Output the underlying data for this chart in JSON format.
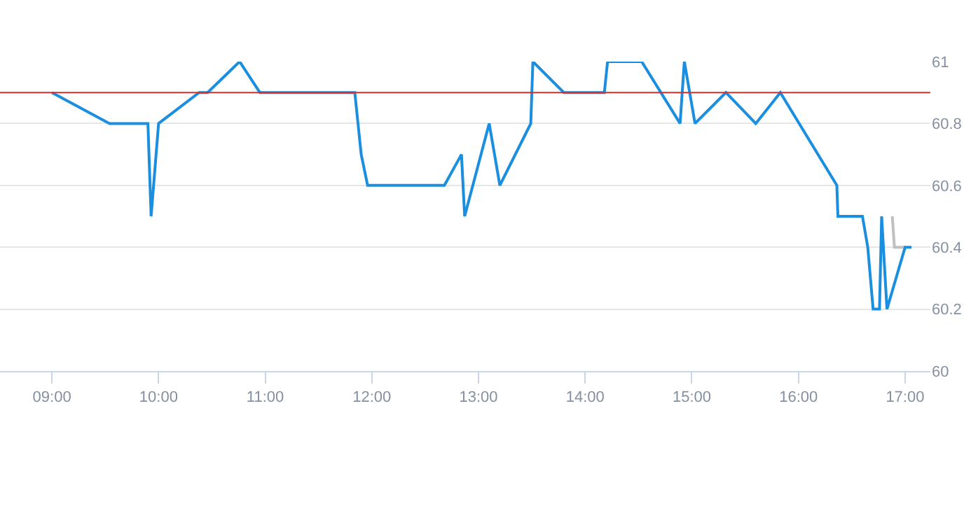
{
  "chart_data": {
    "type": "line",
    "xlim": [
      8.513,
      17.237
    ],
    "ylim": [
      60,
      61
    ],
    "xticks": [
      {
        "value": 9,
        "label": "09:00"
      },
      {
        "value": 10,
        "label": "10:00"
      },
      {
        "value": 11,
        "label": "11:00"
      },
      {
        "value": 12,
        "label": "12:00"
      },
      {
        "value": 13,
        "label": "13:00"
      },
      {
        "value": 14,
        "label": "14:00"
      },
      {
        "value": 15,
        "label": "15:00"
      },
      {
        "value": 16,
        "label": "16:00"
      },
      {
        "value": 17,
        "label": "17:00"
      }
    ],
    "yticks": [
      60,
      60.2,
      60.4,
      60.6,
      60.8,
      61
    ],
    "grid": "y",
    "marker": "none",
    "line_style": "solid",
    "ref_lines": [
      {
        "axis": "y",
        "value": 60.9,
        "label": null,
        "color": "#d32f2f"
      }
    ],
    "series": [
      {
        "color": "#c0c0c0",
        "x": [
          16.88,
          16.9,
          17.0
        ],
        "values": [
          60.5,
          60.4,
          60.4
        ]
      },
      {
        "color": "#1a8fdf",
        "x": [
          9.0,
          9.54,
          9.9,
          9.93,
          10.0,
          10.38,
          10.46,
          10.76,
          10.95,
          11.84,
          11.9,
          11.96,
          12.68,
          12.84,
          12.87,
          13.1,
          13.2,
          13.49,
          13.51,
          13.8,
          14.18,
          14.21,
          14.53,
          14.89,
          14.93,
          15.03,
          15.32,
          15.6,
          15.83,
          16.36,
          16.37,
          16.6,
          16.65,
          16.7,
          16.76,
          16.78,
          16.83,
          17.0,
          17.06
        ],
        "values": [
          60.9,
          60.8,
          60.8,
          60.5,
          60.8,
          60.9,
          60.9,
          61,
          60.9,
          60.9,
          60.7,
          60.6,
          60.6,
          60.7,
          60.5,
          60.8,
          60.6,
          60.8,
          61,
          60.9,
          60.9,
          61,
          61,
          60.8,
          61,
          60.8,
          60.9,
          60.8,
          60.9,
          60.6,
          60.5,
          60.5,
          60.4,
          60.2,
          60.2,
          60.5,
          60.2,
          60.4,
          60.4
        ]
      }
    ]
  }
}
